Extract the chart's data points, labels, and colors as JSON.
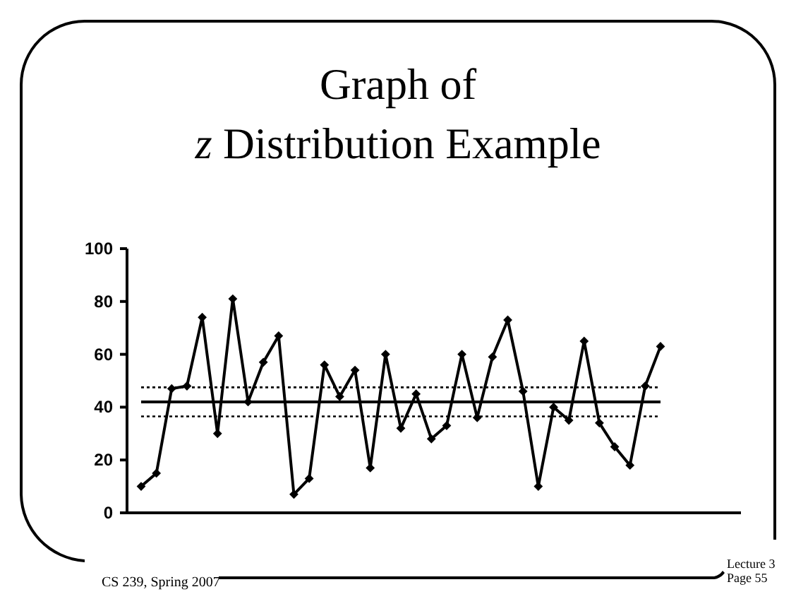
{
  "chart_data": {
    "type": "line",
    "title": "Graph of z Distribution Example",
    "categories": [
      null,
      null,
      null,
      null,
      null,
      null,
      null,
      null,
      null,
      null,
      null,
      null,
      null,
      null,
      null,
      null,
      null,
      null,
      null,
      null,
      null,
      null,
      null,
      null,
      null,
      null,
      null,
      null,
      null,
      null,
      null,
      null,
      null,
      null,
      null
    ],
    "series": [
      {
        "color": "#000000",
        "values": [
          10,
          15,
          47,
          48,
          74,
          30,
          81,
          42,
          57,
          67,
          7,
          13,
          56,
          44,
          54,
          17,
          60,
          32,
          45,
          28,
          33,
          60,
          36,
          59,
          73,
          46,
          10,
          40,
          35,
          65,
          34,
          25,
          18,
          48,
          63
        ]
      }
    ],
    "ylim": [
      0,
      100
    ],
    "yticks": [
      0,
      20,
      40,
      60,
      80,
      100
    ],
    "grid": false,
    "marker": "diamond",
    "line_style": "solid",
    "ref_lines": [
      {
        "axis": "y",
        "value": 42,
        "line_style": "solid",
        "color": "#000000"
      },
      {
        "axis": "y",
        "value": 47.5,
        "line_style": "dotted",
        "color": "#000000"
      },
      {
        "axis": "y",
        "value": 36.5,
        "line_style": "dotted",
        "color": "#000000"
      }
    ],
    "annotations": [
      "CS 239, Spring 2007",
      "Lecture 3",
      "Page 55"
    ]
  }
}
